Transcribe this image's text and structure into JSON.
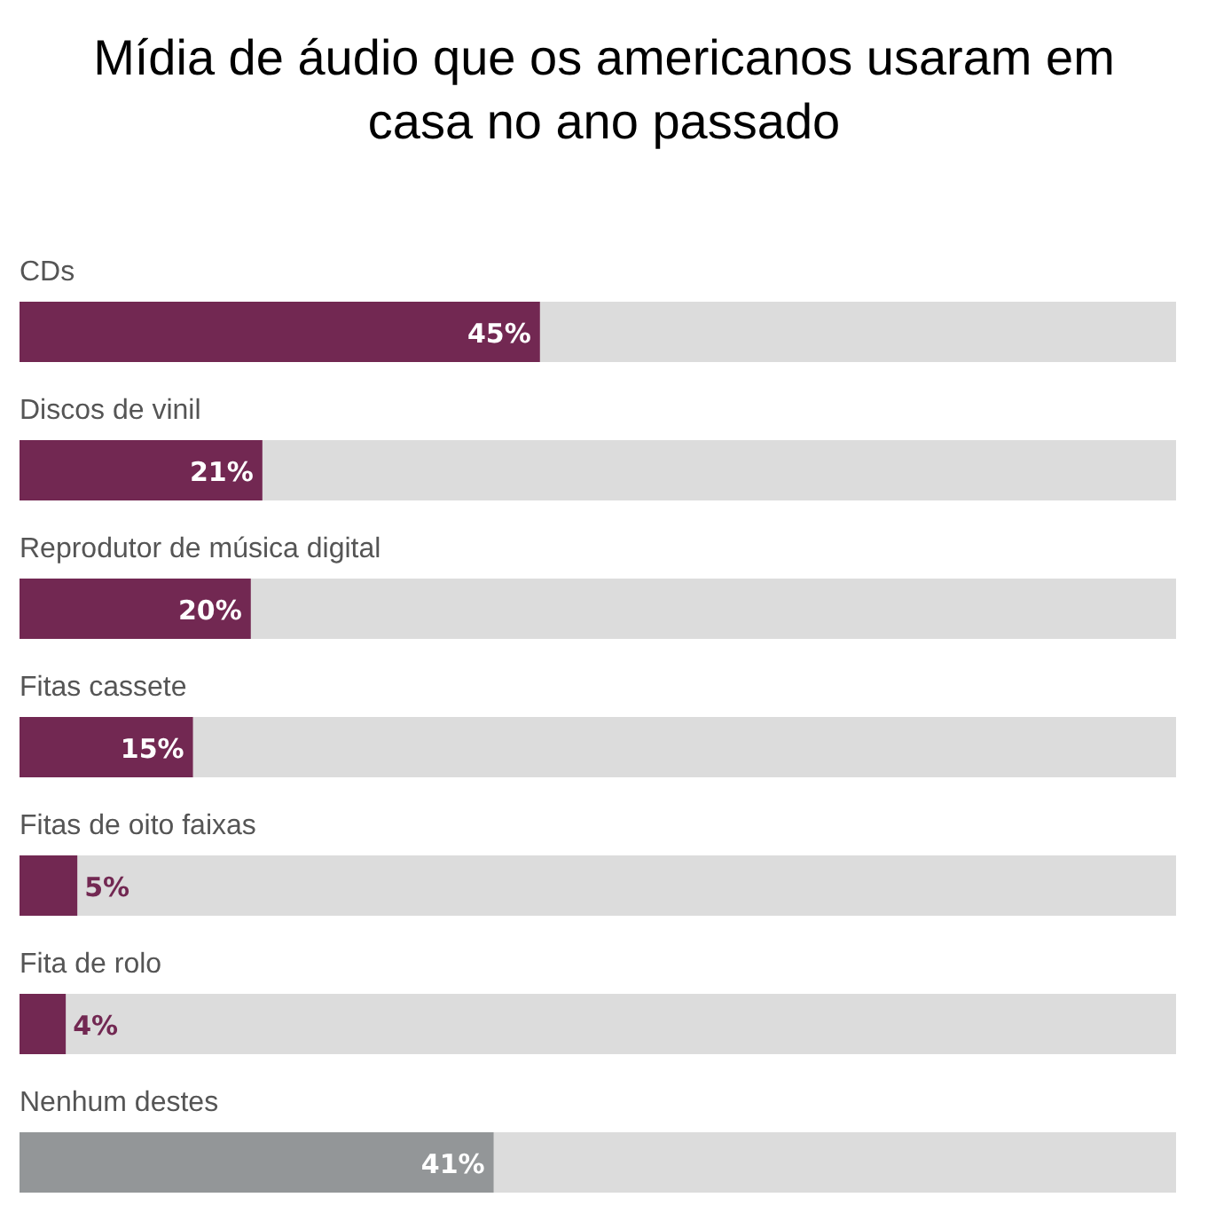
{
  "chart_data": {
    "type": "bar",
    "orientation": "horizontal",
    "title": "Mídia de áudio que os americanos usaram em casa no ano passado",
    "categories": [
      "CDs",
      "Discos de vinil",
      "Reprodutor de música digital",
      "Fitas cassete",
      "Fitas de oito faixas",
      "Fita de rolo",
      "Nenhum destes"
    ],
    "values": [
      45,
      21,
      20,
      15,
      5,
      4,
      41
    ],
    "colors": [
      "#722852",
      "#722852",
      "#722852",
      "#722852",
      "#722852",
      "#722852",
      "#939698"
    ],
    "value_labels": [
      "45%",
      "21%",
      "20%",
      "15%",
      "5%",
      "4%",
      "41%"
    ],
    "xlim": [
      0,
      100
    ]
  }
}
